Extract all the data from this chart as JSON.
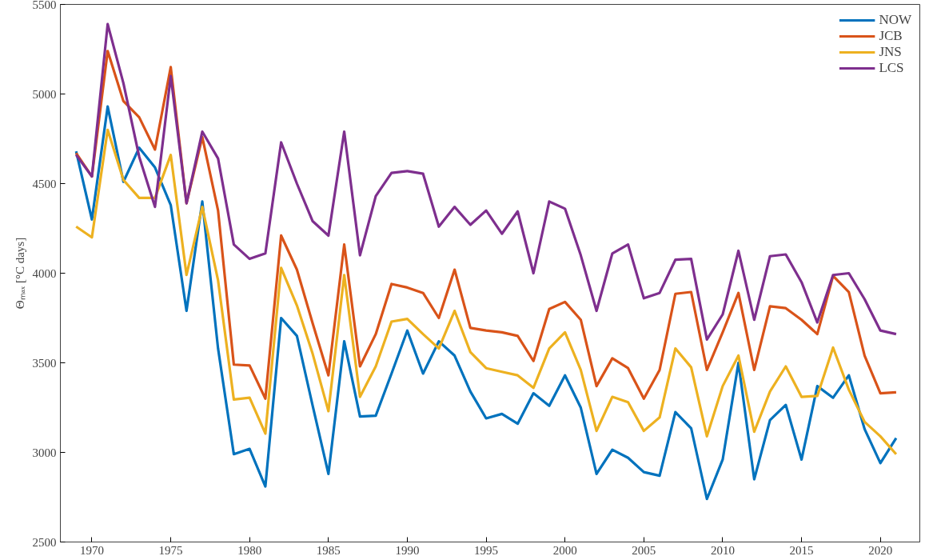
{
  "chart_data": {
    "type": "line",
    "ylabel": "Θₘₐₓ [°C days]",
    "x": [
      1969,
      1970,
      1971,
      1972,
      1973,
      1974,
      1975,
      1976,
      1977,
      1978,
      1979,
      1980,
      1981,
      1982,
      1983,
      1984,
      1985,
      1986,
      1987,
      1988,
      1989,
      1990,
      1991,
      1992,
      1993,
      1994,
      1995,
      1996,
      1997,
      1998,
      1999,
      2000,
      2001,
      2002,
      2003,
      2004,
      2005,
      2006,
      2007,
      2008,
      2009,
      2010,
      2011,
      2012,
      2013,
      2014,
      2015,
      2016,
      2017,
      2018,
      2019,
      2020,
      2021
    ],
    "series": [
      {
        "name": "NOW",
        "color": "#0072bd",
        "values": [
          4680,
          4300,
          4930,
          4510,
          4700,
          4590,
          4380,
          3790,
          4400,
          3580,
          2990,
          3020,
          2810,
          3750,
          3650,
          3260,
          2880,
          3620,
          3200,
          3205,
          3440,
          3680,
          3440,
          3620,
          3540,
          3340,
          3190,
          3215,
          3160,
          3330,
          3260,
          3430,
          3250,
          2880,
          3015,
          2970,
          2890,
          2870,
          3225,
          3135,
          2740,
          2960,
          3500,
          2850,
          3180,
          3265,
          2960,
          3370,
          3305,
          3430,
          3130,
          2940,
          3080
        ]
      },
      {
        "name": "JCB",
        "color": "#d95319",
        "values": [
          4670,
          4540,
          5240,
          4960,
          4870,
          4690,
          5150,
          4390,
          4760,
          4350,
          3490,
          3485,
          3300,
          4210,
          4020,
          3720,
          3430,
          4160,
          3480,
          3660,
          3940,
          3920,
          3890,
          3750,
          4020,
          3695,
          3680,
          3670,
          3650,
          3510,
          3800,
          3840,
          3740,
          3370,
          3525,
          3470,
          3300,
          3460,
          3885,
          3895,
          3460,
          3670,
          3890,
          3460,
          3815,
          3805,
          3740,
          3660,
          3985,
          3895,
          3540,
          3330,
          3335
        ]
      },
      {
        "name": "JNS",
        "color": "#edb120",
        "values": [
          4260,
          4200,
          4800,
          4520,
          4420,
          4420,
          4660,
          3990,
          4370,
          3960,
          3295,
          3305,
          3105,
          4030,
          3820,
          3550,
          3230,
          3990,
          3310,
          3480,
          3730,
          3745,
          3660,
          3580,
          3790,
          3560,
          3470,
          3450,
          3430,
          3360,
          3580,
          3670,
          3460,
          3120,
          3310,
          3280,
          3120,
          3195,
          3580,
          3475,
          3090,
          3370,
          3540,
          3115,
          3340,
          3480,
          3310,
          3315,
          3585,
          3350,
          3170,
          3090,
          2990
        ]
      },
      {
        "name": "LCS",
        "color": "#7e2f8e",
        "values": [
          4660,
          4540,
          5390,
          5060,
          4650,
          4370,
          5100,
          4390,
          4790,
          4640,
          4160,
          4080,
          4110,
          4730,
          4500,
          4290,
          4210,
          4790,
          4100,
          4430,
          4560,
          4570,
          4555,
          4260,
          4370,
          4270,
          4350,
          4220,
          4345,
          4000,
          4400,
          4360,
          4100,
          3790,
          4110,
          4160,
          3860,
          3890,
          4075,
          4080,
          3630,
          3770,
          4125,
          3740,
          4095,
          4105,
          3950,
          3725,
          3990,
          4000,
          3855,
          3680,
          3660
        ]
      }
    ],
    "xlim": [
      1968,
      2022.5
    ],
    "ylim": [
      2500,
      5500
    ],
    "xticks": [
      1970,
      1975,
      1980,
      1985,
      1990,
      1995,
      2000,
      2005,
      2010,
      2015,
      2020
    ],
    "yticks": [
      2500,
      3000,
      3500,
      4000,
      4500,
      5000,
      5500
    ],
    "grid": false,
    "legend": "top right",
    "marker": "none",
    "line_style": "solid"
  }
}
